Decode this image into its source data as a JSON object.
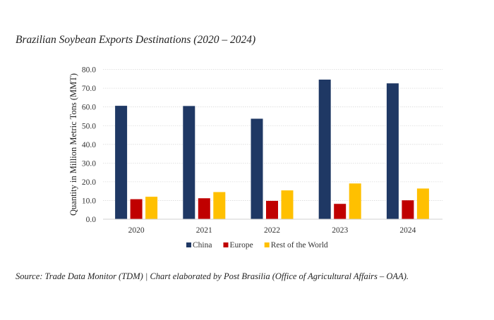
{
  "header": {
    "title": "Brazilian Soybean Exports Destinations (2020 – 2024)"
  },
  "footer": {
    "source": "Source: Trade Data Monitor (TDM) | Chart elaborated by Post Brasilia (Office of Agricultural Affairs – OAA)."
  },
  "chart_data": {
    "type": "bar",
    "title": "Brazilian Soybean Exports Destinations (2020 – 2024)",
    "xlabel": "",
    "ylabel": "Quantity in Million Metric Tons (MMT)",
    "categories": [
      "2020",
      "2021",
      "2022",
      "2023",
      "2024"
    ],
    "series": [
      {
        "name": "China",
        "color": "#1f3864",
        "values": [
          60.6,
          60.5,
          53.7,
          74.6,
          72.6
        ]
      },
      {
        "name": "Europe",
        "color": "#c00000",
        "values": [
          10.7,
          11.2,
          9.8,
          8.2,
          10.1
        ]
      },
      {
        "name": "Rest of the World",
        "color": "#ffc000",
        "values": [
          12.0,
          14.5,
          15.4,
          19.1,
          16.4
        ]
      }
    ],
    "ylim": [
      0,
      80
    ],
    "yticks": [
      0,
      10,
      20,
      30,
      40,
      50,
      60,
      70,
      80
    ],
    "ytick_labels": [
      "0.0",
      "10.0",
      "20.0",
      "30.0",
      "40.0",
      "50.0",
      "60.0",
      "70.0",
      "80.0"
    ],
    "grid": true,
    "legend_position": "bottom"
  }
}
